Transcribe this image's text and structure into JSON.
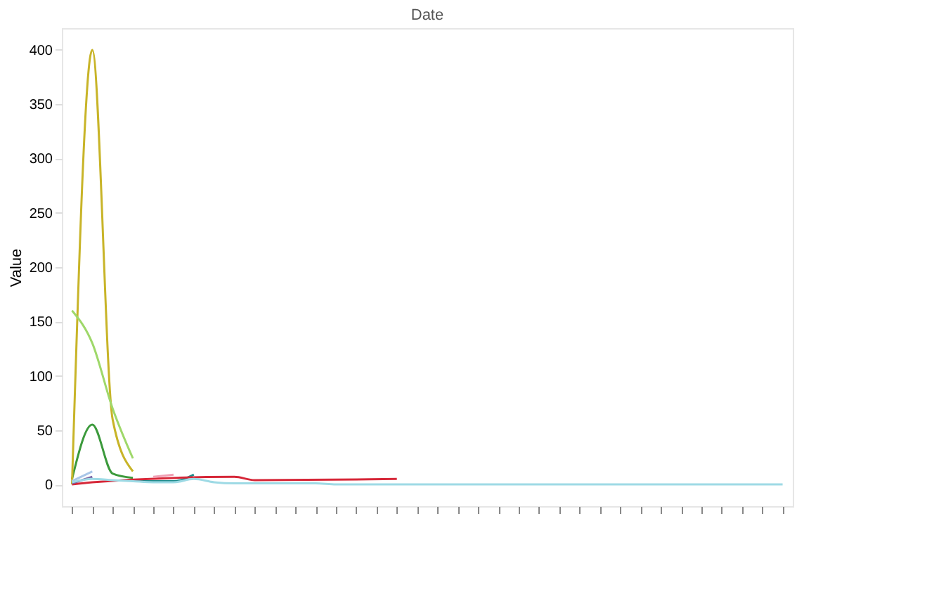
{
  "chart_data": {
    "type": "line",
    "title": "Date",
    "ylabel": "Value",
    "categories": [
      null,
      null,
      null,
      null,
      null,
      null,
      null,
      null,
      null,
      null,
      null,
      null,
      null,
      null,
      null,
      null,
      null,
      null,
      null,
      null,
      null,
      null,
      null,
      null,
      null,
      null,
      null,
      null,
      null,
      null,
      null,
      null,
      null,
      null,
      null,
      null
    ],
    "ylim": [
      -20,
      420
    ],
    "yticks": [
      0,
      50,
      100,
      150,
      200,
      250,
      300,
      350,
      400
    ],
    "grid": false,
    "legend": false,
    "line_style": "solid",
    "marker": "none",
    "series": [
      {
        "color": "#3c9a3c",
        "values": [
          5,
          55,
          10,
          6,
          null,
          null,
          null,
          null,
          null,
          null,
          null,
          null,
          null,
          null,
          null,
          null,
          null,
          null,
          null,
          null,
          null,
          null,
          null,
          null,
          null,
          null,
          null,
          null,
          null,
          null,
          null,
          null,
          null,
          null,
          null,
          null
        ]
      },
      {
        "color": "#c8b428",
        "values": [
          0,
          400,
          60,
          12,
          null,
          null,
          null,
          null,
          null,
          null,
          null,
          null,
          null,
          null,
          null,
          null,
          null,
          null,
          null,
          null,
          null,
          null,
          null,
          null,
          null,
          null,
          null,
          null,
          null,
          null,
          null,
          null,
          null,
          null,
          null,
          null
        ]
      },
      {
        "color": "#9fd86a",
        "values": [
          160,
          130,
          70,
          24,
          null,
          null,
          null,
          null,
          null,
          null,
          null,
          null,
          null,
          null,
          null,
          null,
          null,
          null,
          null,
          null,
          null,
          null,
          null,
          null,
          null,
          null,
          null,
          null,
          null,
          null,
          null,
          null,
          null,
          null,
          null,
          null
        ]
      },
      {
        "color": "#1f8c8c",
        "values": [
          null,
          null,
          null,
          4,
          3,
          3,
          9,
          null,
          null,
          null,
          null,
          null,
          null,
          null,
          null,
          null,
          null,
          null,
          null,
          null,
          null,
          null,
          null,
          null,
          null,
          null,
          null,
          null,
          null,
          null,
          null,
          null,
          null,
          null,
          null,
          null
        ]
      },
      {
        "color": "#a9c6e8",
        "values": [
          3,
          12,
          null,
          null,
          null,
          null,
          null,
          null,
          null,
          null,
          null,
          null,
          null,
          null,
          null,
          null,
          null,
          null,
          null,
          null,
          null,
          null,
          null,
          null,
          null,
          null,
          null,
          null,
          null,
          null,
          null,
          null,
          null,
          null,
          null,
          null
        ]
      },
      {
        "color": "#d62738",
        "values": [
          0,
          2,
          null,
          null,
          null,
          null,
          null,
          null,
          7,
          4,
          null,
          null,
          null,
          null,
          null,
          null,
          5,
          null,
          null,
          null,
          null,
          null,
          null,
          null,
          null,
          null,
          null,
          null,
          null,
          null,
          null,
          null,
          null,
          null,
          null,
          null
        ]
      },
      {
        "color": "#f0a0b4",
        "values": [
          null,
          null,
          null,
          null,
          7,
          9,
          null,
          null,
          null,
          null,
          null,
          null,
          null,
          null,
          null,
          null,
          null,
          null,
          null,
          null,
          null,
          null,
          null,
          null,
          null,
          null,
          null,
          null,
          null,
          null,
          null,
          null,
          null,
          null,
          null,
          null
        ]
      },
      {
        "color": "#7b66a6",
        "values": [
          1,
          7,
          null,
          null,
          null,
          null,
          null,
          null,
          null,
          null,
          null,
          null,
          null,
          null,
          null,
          null,
          null,
          null,
          null,
          null,
          null,
          null,
          null,
          null,
          null,
          null,
          null,
          null,
          null,
          null,
          null,
          null,
          null,
          null,
          null,
          null
        ]
      },
      {
        "color": "#9edae5",
        "values": [
          2,
          5,
          4,
          3,
          2,
          2,
          5,
          2,
          1,
          1,
          1,
          1,
          1,
          0,
          0,
          0,
          0,
          0,
          0,
          0,
          0,
          0,
          0,
          0,
          0,
          0,
          0,
          0,
          0,
          0,
          0,
          0,
          0,
          0,
          0,
          0
        ]
      }
    ]
  }
}
